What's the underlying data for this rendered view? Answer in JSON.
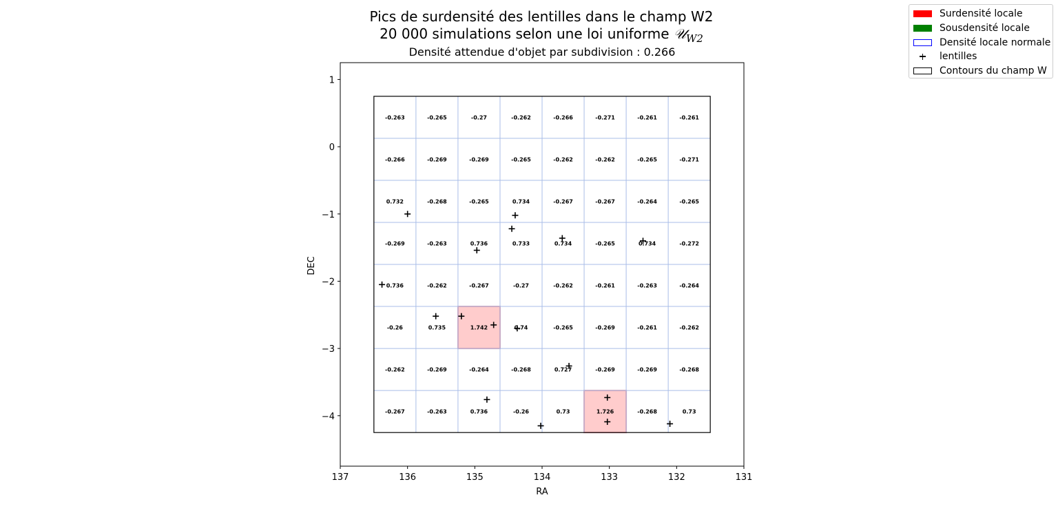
{
  "chart_data": {
    "type": "heatmap",
    "title_line1": "Pics de surdensité des lentilles dans le champ W2",
    "title_line2_text": "20 000 simulations selon une loi uniforme ",
    "title_line2_math": "𝒰",
    "title_line2_sub": "W2",
    "subtitle": "Densité attendue d'objet par subdivision : 0.266",
    "xlabel": "RA",
    "ylabel": "DEC",
    "xlim": [
      137,
      131
    ],
    "ylim": [
      -4.75,
      1.25
    ],
    "xticks": [
      137,
      136,
      135,
      134,
      133,
      132,
      131
    ],
    "yticks": [
      1,
      0,
      -1,
      -2,
      -3,
      -4
    ],
    "xtick_labels": [
      "137",
      "136",
      "135",
      "134",
      "133",
      "132",
      "131"
    ],
    "ytick_labels": [
      "1",
      "0",
      "−1",
      "−2",
      "−3",
      "−4"
    ],
    "field_contour": {
      "ra_min": 131.5,
      "ra_max": 136.5,
      "dec_min": -4.25,
      "dec_max": 0.75
    },
    "grid": {
      "rows": 8,
      "cols": 8
    },
    "cell_values": [
      [
        "-0.263",
        "-0.265",
        "-0.27",
        "-0.262",
        "-0.266",
        "-0.271",
        "-0.261",
        "-0.261"
      ],
      [
        "-0.266",
        "-0.269",
        "-0.269",
        "-0.265",
        "-0.262",
        "-0.262",
        "-0.265",
        "-0.271"
      ],
      [
        "0.732",
        "-0.268",
        "-0.265",
        "0.734",
        "-0.267",
        "-0.267",
        "-0.264",
        "-0.265"
      ],
      [
        "-0.269",
        "-0.263",
        "0.736",
        "0.733",
        "0.734",
        "-0.265",
        "0.734",
        "-0.272"
      ],
      [
        "0.736",
        "-0.262",
        "-0.267",
        "-0.27",
        "-0.262",
        "-0.261",
        "-0.263",
        "-0.264"
      ],
      [
        "-0.26",
        "0.735",
        "1.742",
        "0.74",
        "-0.265",
        "-0.269",
        "-0.261",
        "-0.262"
      ],
      [
        "-0.262",
        "-0.269",
        "-0.264",
        "-0.268",
        "0.727",
        "-0.269",
        "-0.269",
        "-0.268"
      ],
      [
        "-0.267",
        "-0.263",
        "0.736",
        "-0.26",
        "0.73",
        "1.726",
        "-0.268",
        "0.73"
      ]
    ],
    "overdense_cells": [
      [
        5,
        2
      ],
      [
        7,
        5
      ]
    ],
    "lenses": [
      {
        "ra": 136.0,
        "dec": -1.0
      },
      {
        "ra": 134.4,
        "dec": -1.02
      },
      {
        "ra": 134.45,
        "dec": -1.22
      },
      {
        "ra": 133.7,
        "dec": -1.36
      },
      {
        "ra": 132.5,
        "dec": -1.4
      },
      {
        "ra": 134.97,
        "dec": -1.54
      },
      {
        "ra": 136.38,
        "dec": -2.05
      },
      {
        "ra": 135.58,
        "dec": -2.52
      },
      {
        "ra": 135.2,
        "dec": -2.52
      },
      {
        "ra": 134.72,
        "dec": -2.65
      },
      {
        "ra": 134.37,
        "dec": -2.7
      },
      {
        "ra": 133.6,
        "dec": -3.26
      },
      {
        "ra": 134.82,
        "dec": -3.76
      },
      {
        "ra": 133.03,
        "dec": -3.73
      },
      {
        "ra": 133.03,
        "dec": -4.09
      },
      {
        "ra": 134.02,
        "dec": -4.15
      },
      {
        "ra": 132.1,
        "dec": -4.12
      }
    ],
    "colors": {
      "overdense_fill": "#ffcccc",
      "overdense_edge": "#e89aa5",
      "grid_line": "#a9bde8",
      "contour": "#000000",
      "lens_marker": "#000000"
    },
    "legend": {
      "placement": "top-right",
      "entries": [
        {
          "label": "Surdensité locale",
          "kind": "swatch",
          "fill": "#ff0000",
          "edge": "#ff0000"
        },
        {
          "label": "Sousdensité locale",
          "kind": "swatch",
          "fill": "#008000",
          "edge": "#008000"
        },
        {
          "label": "Densité locale normale",
          "kind": "swatch",
          "fill": "#ffffff",
          "edge": "#0000ff"
        },
        {
          "label": "lentilles",
          "kind": "marker"
        },
        {
          "label": "Contours du champ W",
          "kind": "swatch",
          "fill": "#ffffff",
          "edge": "#000000"
        }
      ]
    }
  }
}
